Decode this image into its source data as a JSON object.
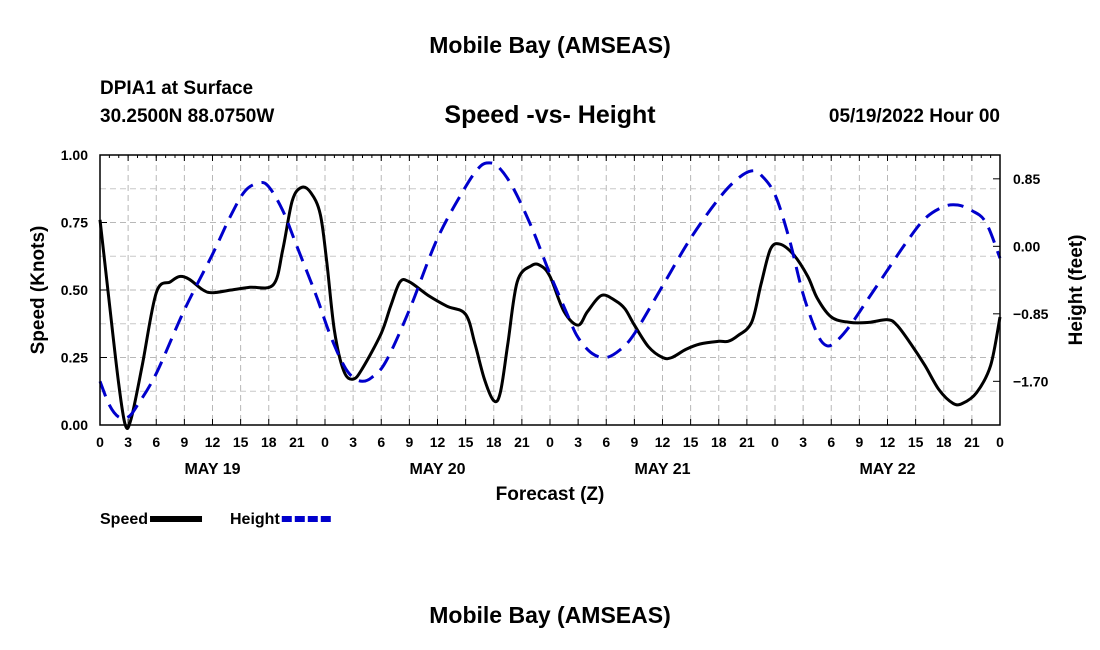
{
  "page": {
    "title": "Mobile Bay (AMSEAS)",
    "station": "DPIA1 at Surface",
    "coords": "30.2500N  88.0750W",
    "datetime": "05/19/2022 Hour 00",
    "footer_title": "Mobile Bay (AMSEAS)"
  },
  "chart_data": {
    "type": "line",
    "title": "Speed -vs- Height",
    "xlabel": "Forecast (Z)",
    "ylabel": "Speed (Knots)",
    "ylabel_right": "Height (feet)",
    "xlim": [
      0,
      96
    ],
    "ylim": [
      0,
      1.0
    ],
    "ylim_right": [
      -2.25,
      1.15
    ],
    "x_tick_labels": [
      "0",
      "3",
      "6",
      "9",
      "12",
      "15",
      "18",
      "21",
      "0",
      "3",
      "6",
      "9",
      "12",
      "15",
      "18",
      "21",
      "0",
      "3",
      "6",
      "9",
      "12",
      "15",
      "18",
      "21",
      "0",
      "3",
      "6",
      "9",
      "12",
      "15",
      "18",
      "21",
      "0"
    ],
    "y_tick_labels": [
      "0.00",
      "0.25",
      "0.50",
      "0.75",
      "1.00"
    ],
    "y_ticks": [
      0,
      0.25,
      0.5,
      0.75,
      1.0
    ],
    "y_right_tick_labels": [
      "−1.70",
      "−0.85",
      "0.00",
      "0.85"
    ],
    "y_right_ticks": [
      -1.7,
      -0.85,
      0,
      0.85
    ],
    "day_labels": [
      {
        "text": "MAY 19",
        "x": 12
      },
      {
        "text": "MAY 20",
        "x": 36
      },
      {
        "text": "MAY 21",
        "x": 60
      },
      {
        "text": "MAY 22",
        "x": 84
      }
    ],
    "grid": true,
    "legend": "bottom-left",
    "series": [
      {
        "name": "Speed",
        "axis": "left",
        "color": "#000000",
        "dash": "solid",
        "points": [
          [
            0,
            0.76
          ],
          [
            1,
            0.45
          ],
          [
            2,
            0.15
          ],
          [
            2.7,
            0.0
          ],
          [
            3.3,
            0.02
          ],
          [
            4.5,
            0.22
          ],
          [
            6,
            0.49
          ],
          [
            7.5,
            0.53
          ],
          [
            8.5,
            0.55
          ],
          [
            9.5,
            0.54
          ],
          [
            11,
            0.5
          ],
          [
            12,
            0.49
          ],
          [
            14,
            0.5
          ],
          [
            16,
            0.51
          ],
          [
            18.5,
            0.52
          ],
          [
            19.5,
            0.65
          ],
          [
            20.5,
            0.83
          ],
          [
            21.5,
            0.88
          ],
          [
            22.5,
            0.86
          ],
          [
            23.5,
            0.78
          ],
          [
            24.2,
            0.6
          ],
          [
            25,
            0.35
          ],
          [
            26,
            0.2
          ],
          [
            27,
            0.17
          ],
          [
            28,
            0.21
          ],
          [
            30,
            0.34
          ],
          [
            31,
            0.44
          ],
          [
            32,
            0.53
          ],
          [
            33,
            0.53
          ],
          [
            35,
            0.48
          ],
          [
            37,
            0.44
          ],
          [
            39,
            0.41
          ],
          [
            40,
            0.3
          ],
          [
            41,
            0.17
          ],
          [
            42,
            0.09
          ],
          [
            42.7,
            0.12
          ],
          [
            43.5,
            0.3
          ],
          [
            44.5,
            0.53
          ],
          [
            46,
            0.59
          ],
          [
            47,
            0.59
          ],
          [
            48,
            0.55
          ],
          [
            49.5,
            0.42
          ],
          [
            51,
            0.37
          ],
          [
            52,
            0.42
          ],
          [
            53.5,
            0.48
          ],
          [
            55,
            0.46
          ],
          [
            56,
            0.43
          ],
          [
            57,
            0.37
          ],
          [
            58.5,
            0.29
          ],
          [
            60,
            0.25
          ],
          [
            61,
            0.25
          ],
          [
            62.5,
            0.28
          ],
          [
            64,
            0.3
          ],
          [
            66,
            0.31
          ],
          [
            67,
            0.31
          ],
          [
            68,
            0.33
          ],
          [
            69.5,
            0.38
          ],
          [
            70.5,
            0.52
          ],
          [
            71.5,
            0.65
          ],
          [
            72.5,
            0.67
          ],
          [
            74,
            0.63
          ],
          [
            75.5,
            0.55
          ],
          [
            76.5,
            0.47
          ],
          [
            78,
            0.4
          ],
          [
            80,
            0.38
          ],
          [
            82,
            0.38
          ],
          [
            84,
            0.39
          ],
          [
            85,
            0.37
          ],
          [
            86.5,
            0.3
          ],
          [
            88,
            0.22
          ],
          [
            89.5,
            0.13
          ],
          [
            91,
            0.08
          ],
          [
            92,
            0.08
          ],
          [
            93.5,
            0.12
          ],
          [
            95,
            0.22
          ],
          [
            96,
            0.4
          ]
        ]
      },
      {
        "name": "Height",
        "axis": "right",
        "color": "#0000cc",
        "dash": "dashed",
        "points": [
          [
            0,
            -1.7
          ],
          [
            1,
            -2.0
          ],
          [
            2,
            -2.15
          ],
          [
            3,
            -2.15
          ],
          [
            4,
            -2.0
          ],
          [
            6,
            -1.6
          ],
          [
            9,
            -0.8
          ],
          [
            12,
            -0.1
          ],
          [
            14,
            0.4
          ],
          [
            15.5,
            0.7
          ],
          [
            17,
            0.8
          ],
          [
            18,
            0.75
          ],
          [
            19.5,
            0.45
          ],
          [
            21,
            0.0
          ],
          [
            23,
            -0.6
          ],
          [
            24.5,
            -1.1
          ],
          [
            26,
            -1.5
          ],
          [
            27,
            -1.65
          ],
          [
            28,
            -1.7
          ],
          [
            29,
            -1.65
          ],
          [
            30.5,
            -1.45
          ],
          [
            33,
            -0.8
          ],
          [
            36,
            0.1
          ],
          [
            39,
            0.75
          ],
          [
            40.5,
            1.0
          ],
          [
            41.5,
            1.05
          ],
          [
            42.5,
            1.0
          ],
          [
            44,
            0.75
          ],
          [
            46,
            0.25
          ],
          [
            48,
            -0.35
          ],
          [
            50,
            -0.9
          ],
          [
            51,
            -1.15
          ],
          [
            52.5,
            -1.35
          ],
          [
            54,
            -1.4
          ],
          [
            55.5,
            -1.3
          ],
          [
            57,
            -1.1
          ],
          [
            60,
            -0.5
          ],
          [
            63,
            0.1
          ],
          [
            66,
            0.6
          ],
          [
            68,
            0.85
          ],
          [
            69.5,
            0.95
          ],
          [
            70.5,
            0.9
          ],
          [
            72,
            0.65
          ],
          [
            73.5,
            0.1
          ],
          [
            75,
            -0.6
          ],
          [
            76.5,
            -1.1
          ],
          [
            77.5,
            -1.25
          ],
          [
            78.5,
            -1.2
          ],
          [
            80,
            -1.0
          ],
          [
            82,
            -0.65
          ],
          [
            84,
            -0.3
          ],
          [
            86,
            0.05
          ],
          [
            88,
            0.35
          ],
          [
            90,
            0.5
          ],
          [
            91.5,
            0.52
          ],
          [
            93,
            0.45
          ],
          [
            94.5,
            0.3
          ],
          [
            96,
            -0.15
          ]
        ]
      }
    ]
  }
}
